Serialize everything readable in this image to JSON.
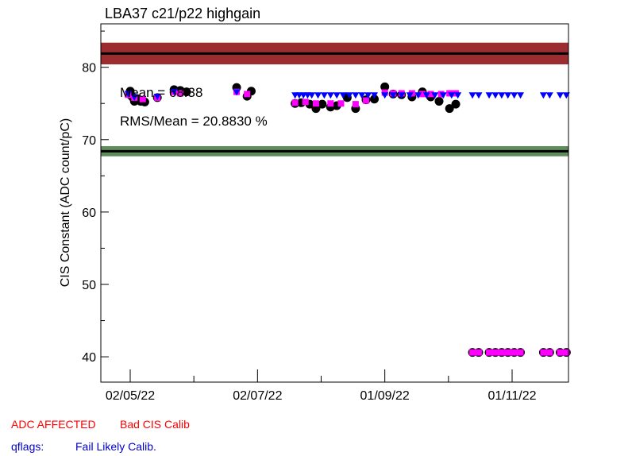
{
  "chart_data": {
    "type": "scatter",
    "title": "LBA37 c21/p22 highgain",
    "ylabel": "CIS Constant (ADC count/pC)",
    "xlabel": "",
    "x_ticks": [
      "02/05/22",
      "02/07/22",
      "01/09/22",
      "01/11/22"
    ],
    "ylim": [
      36.5,
      86
    ],
    "y_ticks": [
      40,
      50,
      60,
      70,
      80
    ],
    "stats": {
      "mean": "Mean = 68.38",
      "rms": "RMS/Mean = 20.8830 %"
    },
    "bands": [
      {
        "name": "upper",
        "center": 81.9,
        "half_width": 1.5,
        "color": "#9b2d30"
      },
      {
        "name": "lower",
        "center": 68.4,
        "half_width": 0.7,
        "color": "#5e8c5a"
      }
    ],
    "series": [
      {
        "marker": "circle",
        "color": "#000000",
        "points": [
          [
            "02/05/22",
            76.7
          ],
          [
            "02/05/22",
            76.2
          ],
          [
            "03/05/22",
            75.9
          ],
          [
            "04/05/22",
            75.3
          ],
          [
            "05/05/22",
            75.7
          ],
          [
            "07/05/22",
            75.3
          ],
          [
            "09/05/22",
            75.2
          ],
          [
            "15/05/22",
            75.8
          ],
          [
            "23/05/22",
            76.9
          ],
          [
            "26/05/22",
            76.8
          ],
          [
            "29/05/22",
            76.6
          ],
          [
            "22/06/22",
            77.2
          ],
          [
            "27/06/22",
            76.0
          ],
          [
            "29/06/22",
            76.7
          ],
          [
            "20/07/22",
            75.0
          ],
          [
            "23/07/22",
            75.1
          ],
          [
            "27/07/22",
            74.9
          ],
          [
            "30/07/22",
            74.3
          ],
          [
            "02/08/22",
            74.9
          ],
          [
            "06/08/22",
            74.5
          ],
          [
            "09/08/22",
            74.7
          ],
          [
            "14/08/22",
            75.8
          ],
          [
            "18/08/22",
            74.3
          ],
          [
            "23/08/22",
            75.5
          ],
          [
            "27/08/22",
            75.6
          ],
          [
            "01/09/22",
            77.3
          ],
          [
            "05/09/22",
            76.3
          ],
          [
            "09/09/22",
            76.2
          ],
          [
            "14/09/22",
            75.9
          ],
          [
            "19/09/22",
            76.6
          ],
          [
            "23/09/22",
            75.9
          ],
          [
            "27/09/22",
            75.3
          ],
          [
            "02/10/22",
            74.3
          ],
          [
            "05/10/22",
            74.9
          ],
          [
            "13/10/22",
            40.6
          ],
          [
            "16/10/22",
            40.6
          ],
          [
            "21/10/22",
            40.6
          ],
          [
            "24/10/22",
            40.6
          ],
          [
            "27/10/22",
            40.6
          ],
          [
            "30/10/22",
            40.6
          ],
          [
            "02/11/22",
            40.6
          ],
          [
            "05/11/22",
            40.6
          ],
          [
            "16/11/22",
            40.6
          ],
          [
            "19/11/22",
            40.6
          ],
          [
            "24/11/22",
            40.6
          ],
          [
            "27/11/22",
            40.6
          ]
        ]
      },
      {
        "marker": "square",
        "color": "#ff00ff",
        "points": [
          [
            "01/05/22",
            76.2
          ],
          [
            "04/05/22",
            75.8
          ],
          [
            "08/05/22",
            75.6
          ],
          [
            "15/05/22",
            75.8
          ],
          [
            "23/05/22",
            76.6
          ],
          [
            "26/05/22",
            76.4
          ],
          [
            "22/06/22",
            76.6
          ],
          [
            "27/06/22",
            76.3
          ],
          [
            "20/07/22",
            75.1
          ],
          [
            "25/07/22",
            75.2
          ],
          [
            "30/07/22",
            75.0
          ],
          [
            "06/08/22",
            75.0
          ],
          [
            "11/08/22",
            75.0
          ],
          [
            "18/08/22",
            74.9
          ],
          [
            "23/08/22",
            75.4
          ],
          [
            "01/09/22",
            76.5
          ],
          [
            "05/09/22",
            76.4
          ],
          [
            "09/09/22",
            76.4
          ],
          [
            "14/09/22",
            76.4
          ],
          [
            "19/09/22",
            76.3
          ],
          [
            "23/09/22",
            76.3
          ],
          [
            "28/09/22",
            76.3
          ],
          [
            "02/10/22",
            76.4
          ],
          [
            "05/10/22",
            76.4
          ],
          [
            "13/10/22",
            40.6
          ],
          [
            "16/10/22",
            40.6
          ],
          [
            "21/10/22",
            40.6
          ],
          [
            "24/10/22",
            40.6
          ],
          [
            "27/10/22",
            40.6
          ],
          [
            "30/10/22",
            40.6
          ],
          [
            "02/11/22",
            40.6
          ],
          [
            "05/11/22",
            40.6
          ],
          [
            "16/11/22",
            40.6
          ],
          [
            "19/11/22",
            40.6
          ],
          [
            "24/11/22",
            40.6
          ],
          [
            "27/11/22",
            40.6
          ]
        ]
      },
      {
        "marker": "triangle-down",
        "color": "#0000ff",
        "points": [
          [
            "01/05/22",
            76.3
          ],
          [
            "04/05/22",
            75.8
          ],
          [
            "15/05/22",
            75.9
          ],
          [
            "23/05/22",
            76.6
          ],
          [
            "22/06/22",
            76.5
          ],
          [
            "20/07/22",
            76.1
          ],
          [
            "22/07/22",
            76.1
          ],
          [
            "24/07/22",
            76.1
          ],
          [
            "26/07/22",
            76.1
          ],
          [
            "28/07/22",
            76.1
          ],
          [
            "31/07/22",
            76.1
          ],
          [
            "03/08/22",
            76.1
          ],
          [
            "06/08/22",
            76.1
          ],
          [
            "09/08/22",
            76.1
          ],
          [
            "12/08/22",
            76.1
          ],
          [
            "15/08/22",
            76.1
          ],
          [
            "18/08/22",
            76.1
          ],
          [
            "21/08/22",
            76.1
          ],
          [
            "24/08/22",
            76.1
          ],
          [
            "27/08/22",
            76.1
          ],
          [
            "01/09/22",
            76.1
          ],
          [
            "05/09/22",
            76.1
          ],
          [
            "09/09/22",
            76.1
          ],
          [
            "13/09/22",
            76.1
          ],
          [
            "17/09/22",
            76.1
          ],
          [
            "21/09/22",
            76.1
          ],
          [
            "25/09/22",
            76.1
          ],
          [
            "29/09/22",
            76.1
          ],
          [
            "03/10/22",
            76.1
          ],
          [
            "06/10/22",
            76.1
          ],
          [
            "13/10/22",
            76.1
          ],
          [
            "16/10/22",
            76.1
          ],
          [
            "21/10/22",
            76.1
          ],
          [
            "24/10/22",
            76.1
          ],
          [
            "27/10/22",
            76.1
          ],
          [
            "30/10/22",
            76.1
          ],
          [
            "02/11/22",
            76.1
          ],
          [
            "05/11/22",
            76.1
          ],
          [
            "16/11/22",
            76.1
          ],
          [
            "19/11/22",
            76.1
          ],
          [
            "24/11/22",
            76.1
          ],
          [
            "27/11/22",
            76.1
          ]
        ]
      }
    ]
  },
  "legend_footer": {
    "adc_affected": "ADC AFFECTED",
    "bad_cis_calib": "Bad CIS Calib",
    "qflags_label": "qflags:",
    "fail_likely_calib": "Fail Likely Calib."
  },
  "colors": {
    "red_text": "#ff0000",
    "blue_text": "#0000cc"
  }
}
